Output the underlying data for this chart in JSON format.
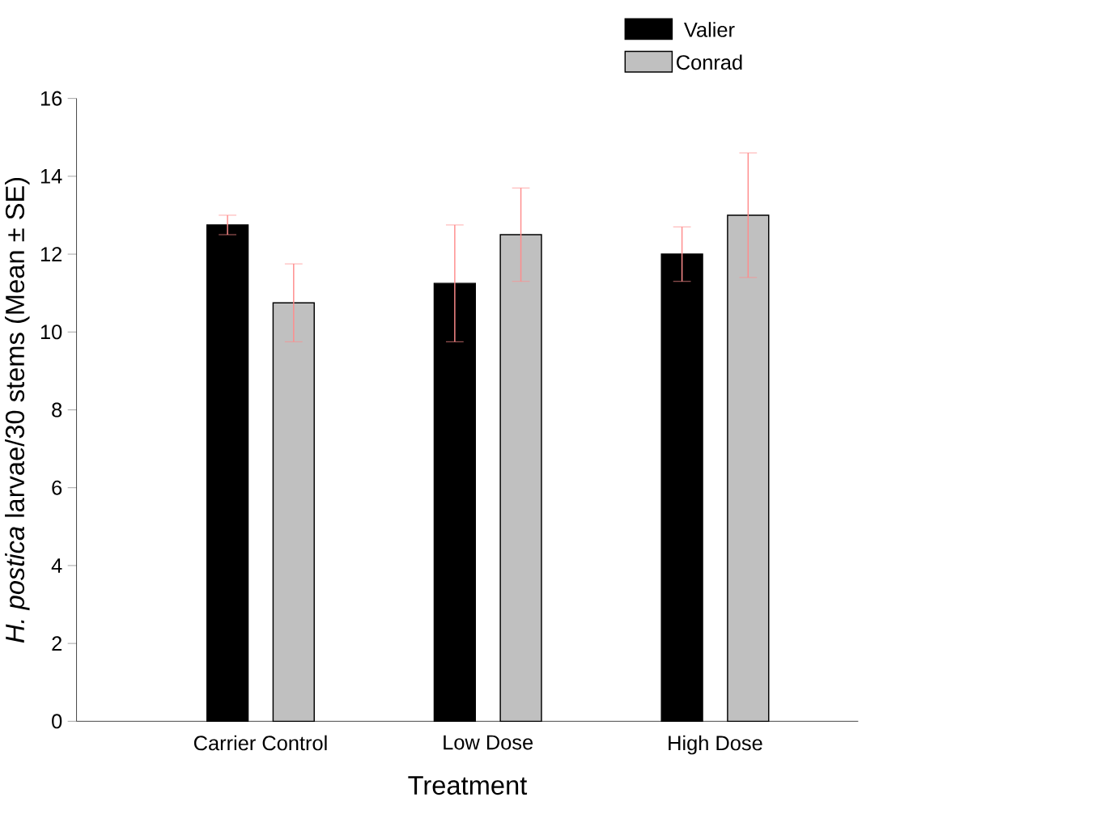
{
  "chart_data": {
    "type": "bar",
    "xlabel": "Treatment",
    "ylabel": "*H. postica* larvae/30 stems (Mean ± SE)",
    "categories": [
      "Carrier Control",
      "Low Dose",
      "High Dose"
    ],
    "series": [
      {
        "name": "Valier",
        "color": "#000000",
        "values": [
          12.75,
          11.25,
          12.0
        ],
        "errors": [
          0.25,
          1.5,
          0.7
        ]
      },
      {
        "name": "Conrad",
        "color": "#c0c0c0",
        "values": [
          10.75,
          12.5,
          13.0
        ],
        "errors": [
          1.0,
          1.2,
          1.6
        ]
      }
    ],
    "ylim": [
      0,
      16
    ],
    "yticks": [
      0,
      2,
      4,
      6,
      8,
      10,
      12,
      14,
      16
    ],
    "legend": "top right"
  }
}
